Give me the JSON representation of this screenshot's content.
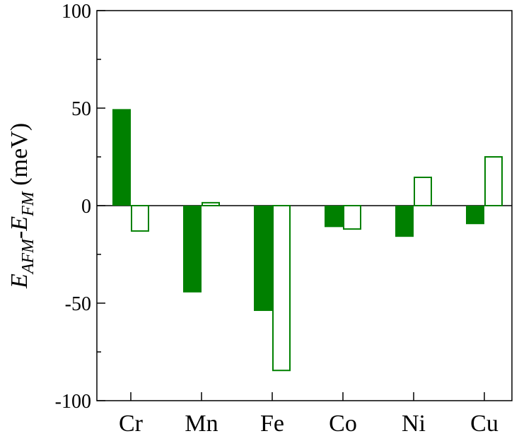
{
  "chart_data": {
    "type": "bar",
    "categories": [
      "Cr",
      "Mn",
      "Fe",
      "Co",
      "Ni",
      "Cu"
    ],
    "series": [
      {
        "style": "filled",
        "color": "#008000",
        "values": [
          49.5,
          -44.5,
          -54,
          -11,
          -16,
          -9.5
        ]
      },
      {
        "style": "open",
        "color": "#008000",
        "values": [
          -13,
          1.5,
          -84.5,
          -12,
          14.5,
          25
        ]
      }
    ],
    "ylabel": {
      "main": "E",
      "sub1": "AFM",
      "dash": "-E",
      "sub2": "FM",
      "unit": " (meV)"
    },
    "ylim": [
      -100,
      100
    ],
    "yticks": [
      -100,
      -50,
      0,
      50,
      100
    ],
    "yticks_minor": [
      -75,
      -25,
      25,
      75
    ],
    "zero_line": true,
    "grid": false,
    "legend": "none"
  }
}
